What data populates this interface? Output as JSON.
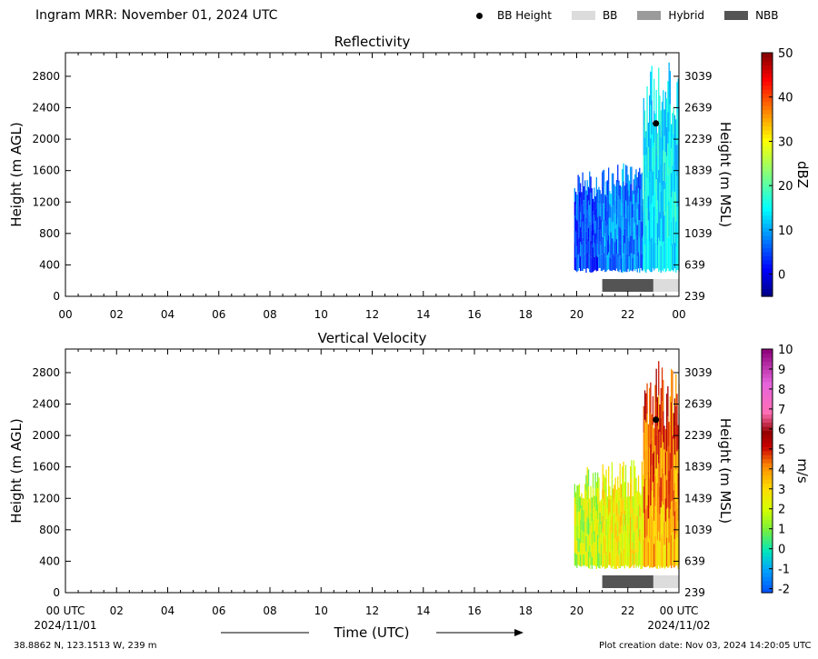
{
  "header": {
    "title": "Ingram MRR:  November 01, 2024 UTC",
    "legend": [
      {
        "label": "BB Height",
        "kind": "dot",
        "color": "#000000"
      },
      {
        "label": "BB",
        "kind": "swatch",
        "color": "#dcdcdc"
      },
      {
        "label": "Hybrid",
        "kind": "swatch",
        "color": "#9b9b9b"
      },
      {
        "label": "NBB",
        "kind": "swatch",
        "color": "#545454"
      }
    ]
  },
  "footer": {
    "location": "38.8862 N, 123.1513 W, 239 m",
    "creation": "Plot creation date: Nov 03, 2024 14:20:05 UTC",
    "xlabel": "Time (UTC)",
    "start_date": "2024/11/01",
    "end_date": "2024/11/02"
  },
  "chart_data": [
    {
      "type": "heatmap",
      "title": "Reflectivity",
      "ylabel": "Height (m AGL)",
      "y2label": "Height (m MSL)",
      "xlabel": "",
      "xticks": [
        "00",
        "02",
        "04",
        "06",
        "08",
        "10",
        "12",
        "14",
        "16",
        "18",
        "20",
        "22",
        "00"
      ],
      "xlim": [
        0,
        24
      ],
      "ylim": [
        0,
        3100
      ],
      "yticks": [
        0,
        400,
        800,
        1200,
        1600,
        2000,
        2400,
        2800
      ],
      "y2ticks": [
        239,
        639,
        1039,
        1439,
        1839,
        2239,
        2639,
        3039
      ],
      "colorbar": {
        "label": "dBZ",
        "min": -5,
        "max": 50,
        "ticks": [
          0,
          10,
          20,
          30,
          40,
          50
        ]
      },
      "data_extent": [
        {
          "t_start": 19.9,
          "t_end": 21.0,
          "h_bottom": 300,
          "h_top": 1600,
          "typical": 5
        },
        {
          "t_start": 21.0,
          "t_end": 22.6,
          "h_bottom": 300,
          "h_top": 1700,
          "typical": 8
        },
        {
          "t_start": 22.6,
          "t_end": 24.0,
          "h_bottom": 300,
          "h_top": 3000,
          "typical": 14
        }
      ],
      "bb_height": {
        "time": 23.1,
        "height": 2200
      },
      "bb_type_bar": [
        {
          "t_start": 21.0,
          "t_end": 23.0,
          "type": "NBB"
        },
        {
          "t_start": 23.0,
          "t_end": 24.0,
          "type": "BB"
        }
      ]
    },
    {
      "type": "heatmap",
      "title": "Vertical Velocity",
      "ylabel": "Height (m AGL)",
      "y2label": "Height (m MSL)",
      "xlabel": "Time (UTC)",
      "xticks": [
        "00 UTC",
        "02",
        "04",
        "06",
        "08",
        "10",
        "12",
        "14",
        "16",
        "18",
        "20",
        "22",
        "00 UTC"
      ],
      "xlim": [
        0,
        24
      ],
      "ylim": [
        0,
        3100
      ],
      "yticks": [
        0,
        400,
        800,
        1200,
        1600,
        2000,
        2400,
        2800
      ],
      "y2ticks": [
        239,
        639,
        1039,
        1439,
        1839,
        2239,
        2639,
        3039
      ],
      "colorbar": {
        "label": "m/s",
        "min": -2.2,
        "max": 10,
        "ticks": [
          -2,
          -1,
          0,
          1,
          2,
          3,
          4,
          5,
          6,
          7,
          8,
          9,
          10
        ]
      },
      "data_extent": [
        {
          "t_start": 19.9,
          "t_end": 21.0,
          "h_bottom": 300,
          "h_top": 1600,
          "typical": 1.8
        },
        {
          "t_start": 21.0,
          "t_end": 22.6,
          "h_bottom": 300,
          "h_top": 1700,
          "typical": 2.5
        },
        {
          "t_start": 22.6,
          "t_end": 24.0,
          "h_bottom": 300,
          "h_top": 3000,
          "typical": 3.5
        }
      ],
      "bb_height": {
        "time": 23.1,
        "height": 2200
      },
      "bb_type_bar": [
        {
          "t_start": 21.0,
          "t_end": 23.0,
          "type": "NBB"
        },
        {
          "t_start": 23.0,
          "t_end": 24.0,
          "type": "BB"
        }
      ]
    }
  ]
}
